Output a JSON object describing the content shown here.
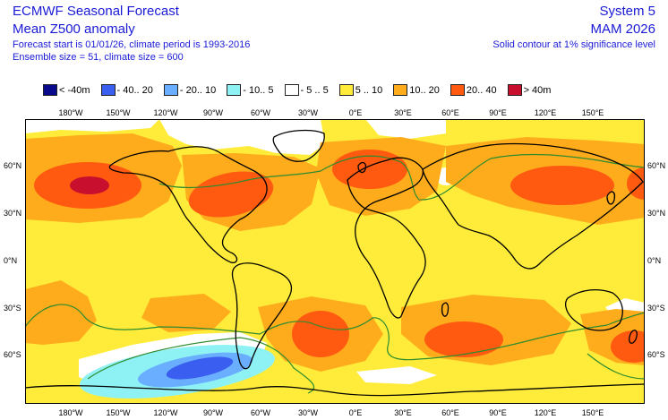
{
  "header": {
    "left_line1": "ECMWF Seasonal Forecast",
    "left_line2": "Mean Z500 anomaly",
    "left_line3": "Forecast start is 01/01/26, climate period is 1993-2016",
    "left_line4": "Ensemble size = 51, climate size = 600",
    "right_line1": "System 5",
    "right_line2": "MAM 2026",
    "right_line3": "Solid contour at 1% significance level"
  },
  "legend": [
    {
      "label": "< -40m",
      "color": "#0a0a8c"
    },
    {
      "label": "- 40.. 20",
      "color": "#3a5ff0"
    },
    {
      "label": "- 20.. 10",
      "color": "#6aaeff"
    },
    {
      "label": "- 10.. 5",
      "color": "#8ef2f5"
    },
    {
      "label": "- 5 .. 5",
      "color": "#ffffff"
    },
    {
      "label": "5 .. 10",
      "color": "#ffec3a"
    },
    {
      "label": "10.. 20",
      "color": "#ffac1c"
    },
    {
      "label": "20.. 40",
      "color": "#ff5a10"
    },
    {
      "label": "> 40m",
      "color": "#c8102e"
    }
  ],
  "lon_labels": [
    "180°W",
    "150°W",
    "120°W",
    "90°W",
    "60°W",
    "30°W",
    "0°E",
    "30°E",
    "60°E",
    "90°E",
    "120°E",
    "150°E"
  ],
  "lat_labels": [
    "60°N",
    "30°N",
    "0°N",
    "30°S",
    "60°S"
  ],
  "colors": {
    "c5_10": "#ffec3a",
    "c10_20": "#ffac1c",
    "c20_40": "#ff5a10",
    "cneg5": "#8ef2f5",
    "cneg10": "#6aaeff",
    "cneg20": "#3a5ff0",
    "sig_contour": "#2e8b2e",
    "coast": "#000000"
  }
}
